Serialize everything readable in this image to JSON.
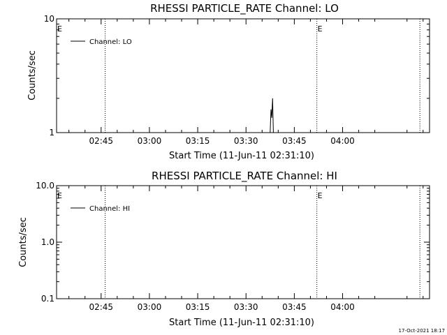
{
  "chart_data": [
    {
      "type": "line",
      "title": "RHESSI PARTICLE_RATE Channel: LO",
      "xlabel": "Start Time (11-Jun-11 02:31:10)",
      "ylabel": "Counts/sec",
      "yscale": "log",
      "ylim": [
        1,
        10
      ],
      "yticks": [
        {
          "value": 1,
          "label": "1"
        },
        {
          "value": 10,
          "label": "10"
        }
      ],
      "xlim": [
        "02:31:10",
        "04:27:00"
      ],
      "xticks": [
        "02:45",
        "03:00",
        "03:15",
        "03:30",
        "03:45",
        "04:00"
      ],
      "legend": "top-left",
      "series": [
        {
          "name": "Channel: LO",
          "x": [
            "03:37:30",
            "03:37:45",
            "03:38:00",
            "03:38:15",
            "03:38:30",
            "03:38:45"
          ],
          "y": [
            1,
            1.6,
            1.35,
            2.0,
            1.0,
            1
          ]
        }
      ],
      "vlines": [
        "02:46:15",
        "03:52:00",
        "04:24:00"
      ],
      "markers": [
        {
          "text": "E",
          "x": "02:31:10"
        },
        {
          "text": "E",
          "x": "03:52:00"
        }
      ],
      "grid": false
    },
    {
      "type": "line",
      "title": "RHESSI PARTICLE_RATE Channel: HI",
      "xlabel": "Start Time (11-Jun-11 02:31:10)",
      "ylabel": "Counts/sec",
      "yscale": "log",
      "ylim": [
        0.1,
        10
      ],
      "yticks": [
        {
          "value": 0.1,
          "label": "0.1"
        },
        {
          "value": 1,
          "label": "1.0"
        },
        {
          "value": 10,
          "label": "10.0"
        }
      ],
      "xlim": [
        "02:31:10",
        "04:27:00"
      ],
      "xticks": [
        "02:45",
        "03:00",
        "03:15",
        "03:30",
        "03:45",
        "04:00"
      ],
      "legend": "top-left",
      "series": [
        {
          "name": "Channel: HI",
          "x": [],
          "y": []
        }
      ],
      "vlines": [
        "02:46:15",
        "03:52:00",
        "04:24:00"
      ],
      "markers": [
        {
          "text": "E",
          "x": "02:31:10"
        },
        {
          "text": "E",
          "x": "03:52:00"
        }
      ],
      "grid": false
    }
  ],
  "footer": {
    "timestamp": "17-Oct-2021 18:17"
  }
}
